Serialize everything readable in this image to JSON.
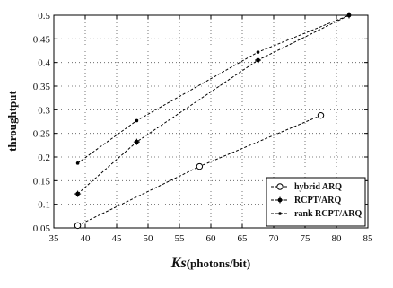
{
  "chart_data": {
    "type": "line",
    "xlabel_main": "Ks",
    "xlabel_unit": "(photons/bit)",
    "ylabel": "throughtput",
    "xlim": [
      35,
      85
    ],
    "ylim": [
      0.05,
      0.5
    ],
    "xticks": [
      "35",
      "40",
      "45",
      "50",
      "55",
      "60",
      "65",
      "70",
      "75",
      "80",
      "85"
    ],
    "yticks": [
      "0.05",
      "0.1",
      "0.15",
      "0.2",
      "0.25",
      "0.3",
      "0.35",
      "0.4",
      "0.45",
      "0.5"
    ],
    "grid": true,
    "legend_position": "bottom-right",
    "series": [
      {
        "name": "hybrid ARQ",
        "marker": "circle-open",
        "x": [
          38.8,
          58.2,
          77.5
        ],
        "y": [
          0.055,
          0.18,
          0.288
        ]
      },
      {
        "name": "RCPT/ARQ",
        "marker": "star",
        "x": [
          38.8,
          48.2,
          67.5,
          82
        ],
        "y": [
          0.122,
          0.232,
          0.405,
          0.5
        ]
      },
      {
        "name": "rank RCPT/ARQ",
        "marker": "dot",
        "x": [
          38.8,
          48.2,
          67.5,
          82
        ],
        "y": [
          0.187,
          0.277,
          0.422,
          0.5
        ]
      }
    ]
  }
}
